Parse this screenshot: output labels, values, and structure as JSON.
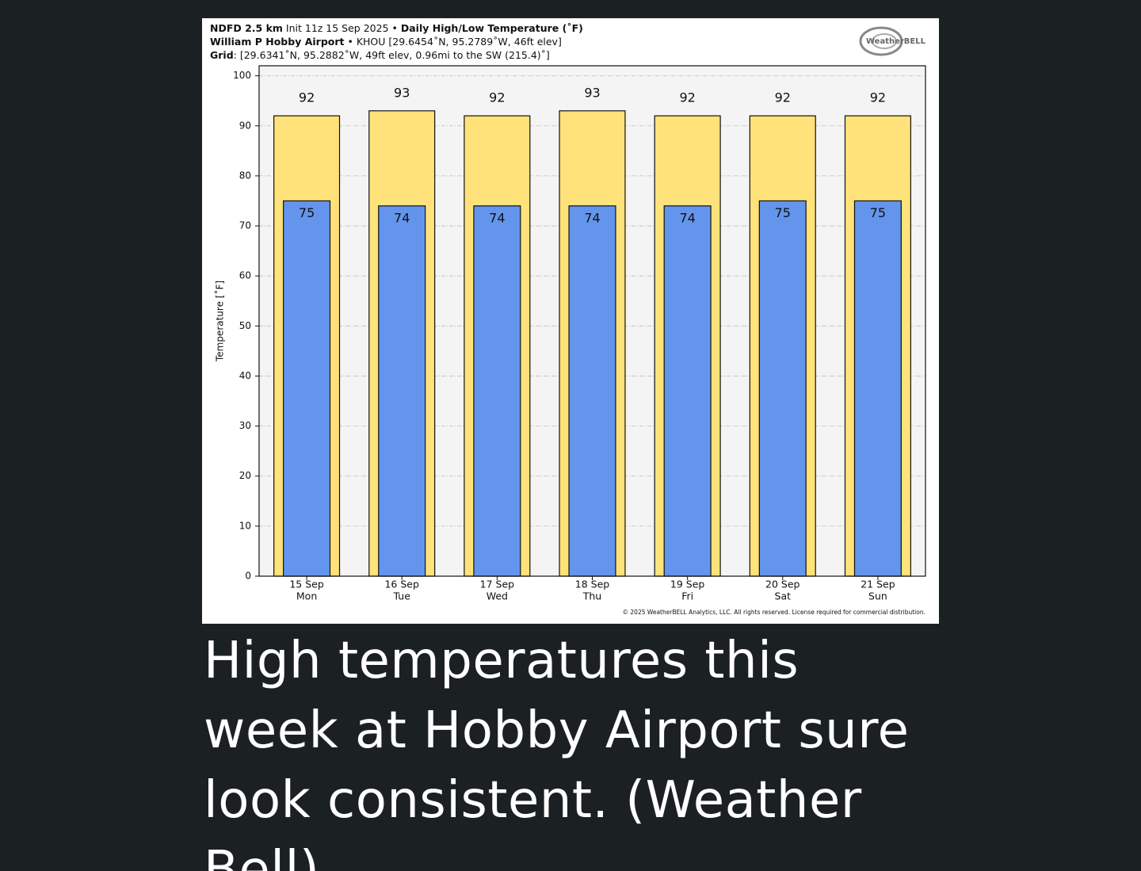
{
  "chart_data": {
    "type": "bar",
    "header": [
      [
        {
          "text": "NDFD 2.5 km",
          "bold": true
        },
        {
          "text": " Init 11z 15 Sep 2025 • ",
          "bold": false
        },
        {
          "text": "Daily High/Low Temperature (˚F)",
          "bold": true
        }
      ],
      [
        {
          "text": "William P Hobby Airport",
          "bold": true
        },
        {
          "text": " • KHOU [29.6454˚N, 95.2789˚W, 46ft elev]",
          "bold": false
        }
      ],
      [
        {
          "text": "Grid",
          "bold": true
        },
        {
          "text": ": [29.6341˚N, 95.2882˚W, 49ft elev, 0.96mi to the SW (215.4)˚]",
          "bold": false
        }
      ]
    ],
    "logo": "WeatherBELL",
    "ylabel": "Temperature [˚F]",
    "categories": [
      [
        "15 Sep",
        "Mon"
      ],
      [
        "16 Sep",
        "Tue"
      ],
      [
        "17 Sep",
        "Wed"
      ],
      [
        "18 Sep",
        "Thu"
      ],
      [
        "19 Sep",
        "Fri"
      ],
      [
        "20 Sep",
        "Sat"
      ],
      [
        "21 Sep",
        "Sun"
      ]
    ],
    "series": [
      {
        "color": "#ffe27a",
        "values": [
          92,
          93,
          92,
          93,
          92,
          92,
          92
        ]
      },
      {
        "color": "#6495ed",
        "values": [
          75,
          74,
          74,
          74,
          74,
          75,
          75
        ]
      }
    ],
    "ylim": [
      0,
      102
    ],
    "yticks": [
      0,
      10,
      20,
      30,
      40,
      50,
      60,
      70,
      80,
      90,
      100
    ],
    "grid": true,
    "copyright": "© 2025 WeatherBELL Analytics, LLC. All rights reserved. License required for commercial distribution."
  },
  "caption": "High temperatures this week at Hobby Airport sure look consistent. (Weather Bell)"
}
